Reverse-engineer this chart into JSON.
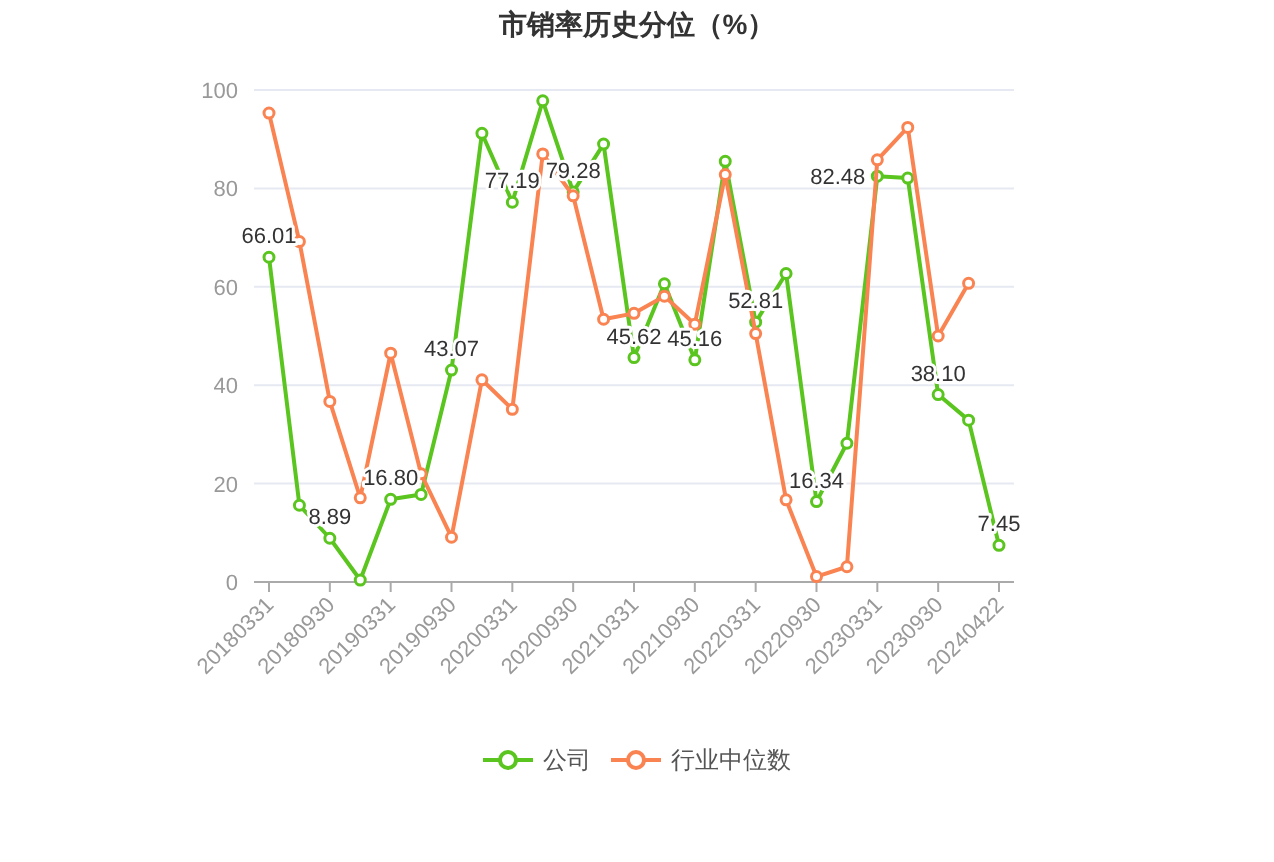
{
  "chart_data": {
    "type": "line",
    "title": "市销率历史分位（%）",
    "categories": [
      "20180331",
      null,
      "20180930",
      null,
      "20190331",
      null,
      "20190930",
      null,
      "20200331",
      null,
      "20200930",
      null,
      "20210331",
      null,
      "20210930",
      null,
      "20220331",
      null,
      "20220930",
      null,
      "20230331",
      null,
      "20230930",
      null,
      "20240422"
    ],
    "series": [
      {
        "name": "公司",
        "color": "#5bc51f",
        "values": [
          66.01,
          15.6,
          8.89,
          0.4,
          16.8,
          17.8,
          43.07,
          91.2,
          77.19,
          97.8,
          79.28,
          89.0,
          45.62,
          60.6,
          45.16,
          85.5,
          52.81,
          62.7,
          16.34,
          28.2,
          82.48,
          82.1,
          38.1,
          32.9,
          7.45
        ],
        "value_labels": [
          "66.01",
          null,
          "8.89",
          null,
          "16.80",
          null,
          "43.07",
          null,
          "77.19",
          null,
          "79.28",
          null,
          "45.62",
          null,
          "45.16",
          null,
          "52.81",
          null,
          "16.34",
          null,
          "82.48",
          null,
          "38.10",
          null,
          "7.45"
        ]
      },
      {
        "name": "行业中位数",
        "color": "#fa8352",
        "values": [
          95.3,
          69.2,
          36.7,
          17.1,
          46.5,
          22.0,
          9.1,
          41.1,
          35.1,
          87.0,
          78.5,
          53.4,
          54.6,
          58.1,
          52.4,
          82.8,
          50.5,
          16.7,
          1.1,
          3.1,
          85.8,
          92.4,
          50.0,
          60.7,
          null
        ]
      }
    ],
    "ylim": [
      0,
      100
    ],
    "yticks": [
      0,
      20,
      40,
      60,
      80,
      100
    ],
    "grid": "y",
    "legend": "bottom",
    "marker": "circle",
    "line_style": "solid"
  }
}
